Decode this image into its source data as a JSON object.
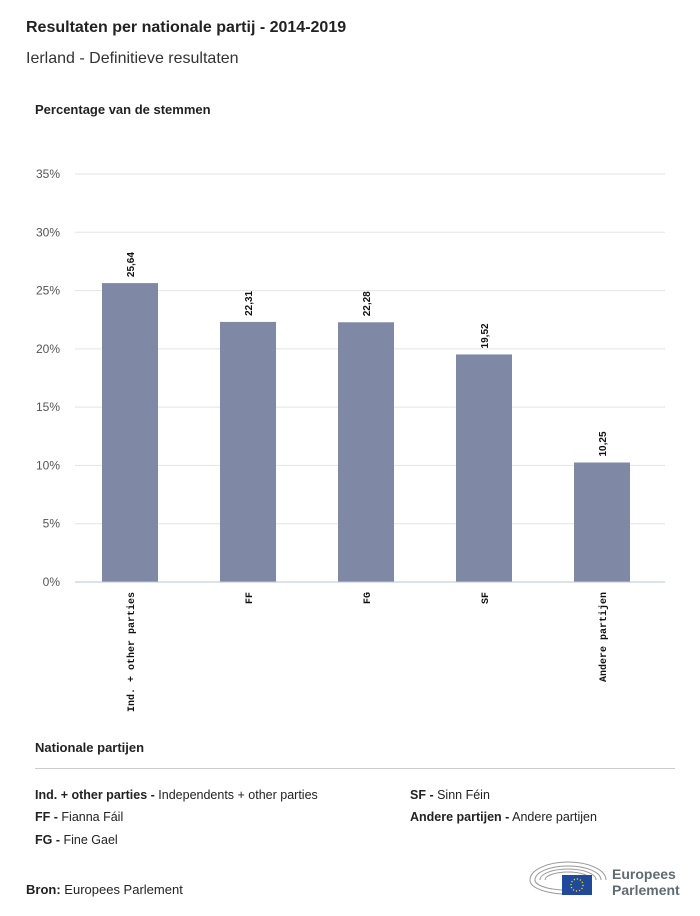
{
  "title": "Resultaten per nationale partij - 2014-2019",
  "subtitle": "Ierland - Definitieve resultaten",
  "chart_data": {
    "type": "bar",
    "title": "Resultaten per nationale partij - 2014-2019",
    "ylabel": "Percentage van de stemmen",
    "xlabel": "",
    "categories": [
      "Ind. + other parties",
      "FF",
      "FG",
      "SF",
      "Andere partijen"
    ],
    "values": [
      25.64,
      22.31,
      22.28,
      19.52,
      10.25
    ],
    "value_labels": [
      "25,64",
      "22,31",
      "22,28",
      "19,52",
      "10,25"
    ],
    "ylim": [
      0,
      35
    ],
    "yticks": [
      "0%",
      "5%",
      "10%",
      "15%",
      "20%",
      "25%",
      "30%",
      "35%"
    ],
    "grid": true,
    "bar_color": "#7f88a5"
  },
  "legend": {
    "title": "Nationale partijen",
    "items": [
      {
        "abbr": "Ind. + other parties -",
        "name": "Independents + other parties"
      },
      {
        "abbr": "FF -",
        "name": "Fianna Fáil"
      },
      {
        "abbr": "FG -",
        "name": "Fine Gael"
      },
      {
        "abbr": "SF -",
        "name": "Sinn Féin"
      },
      {
        "abbr": "Andere partijen -",
        "name": "Andere partijen"
      }
    ]
  },
  "source": {
    "label": "Bron:",
    "value": "Europees Parlement"
  },
  "logo": {
    "line1": "Europees",
    "line2": "Parlement"
  }
}
